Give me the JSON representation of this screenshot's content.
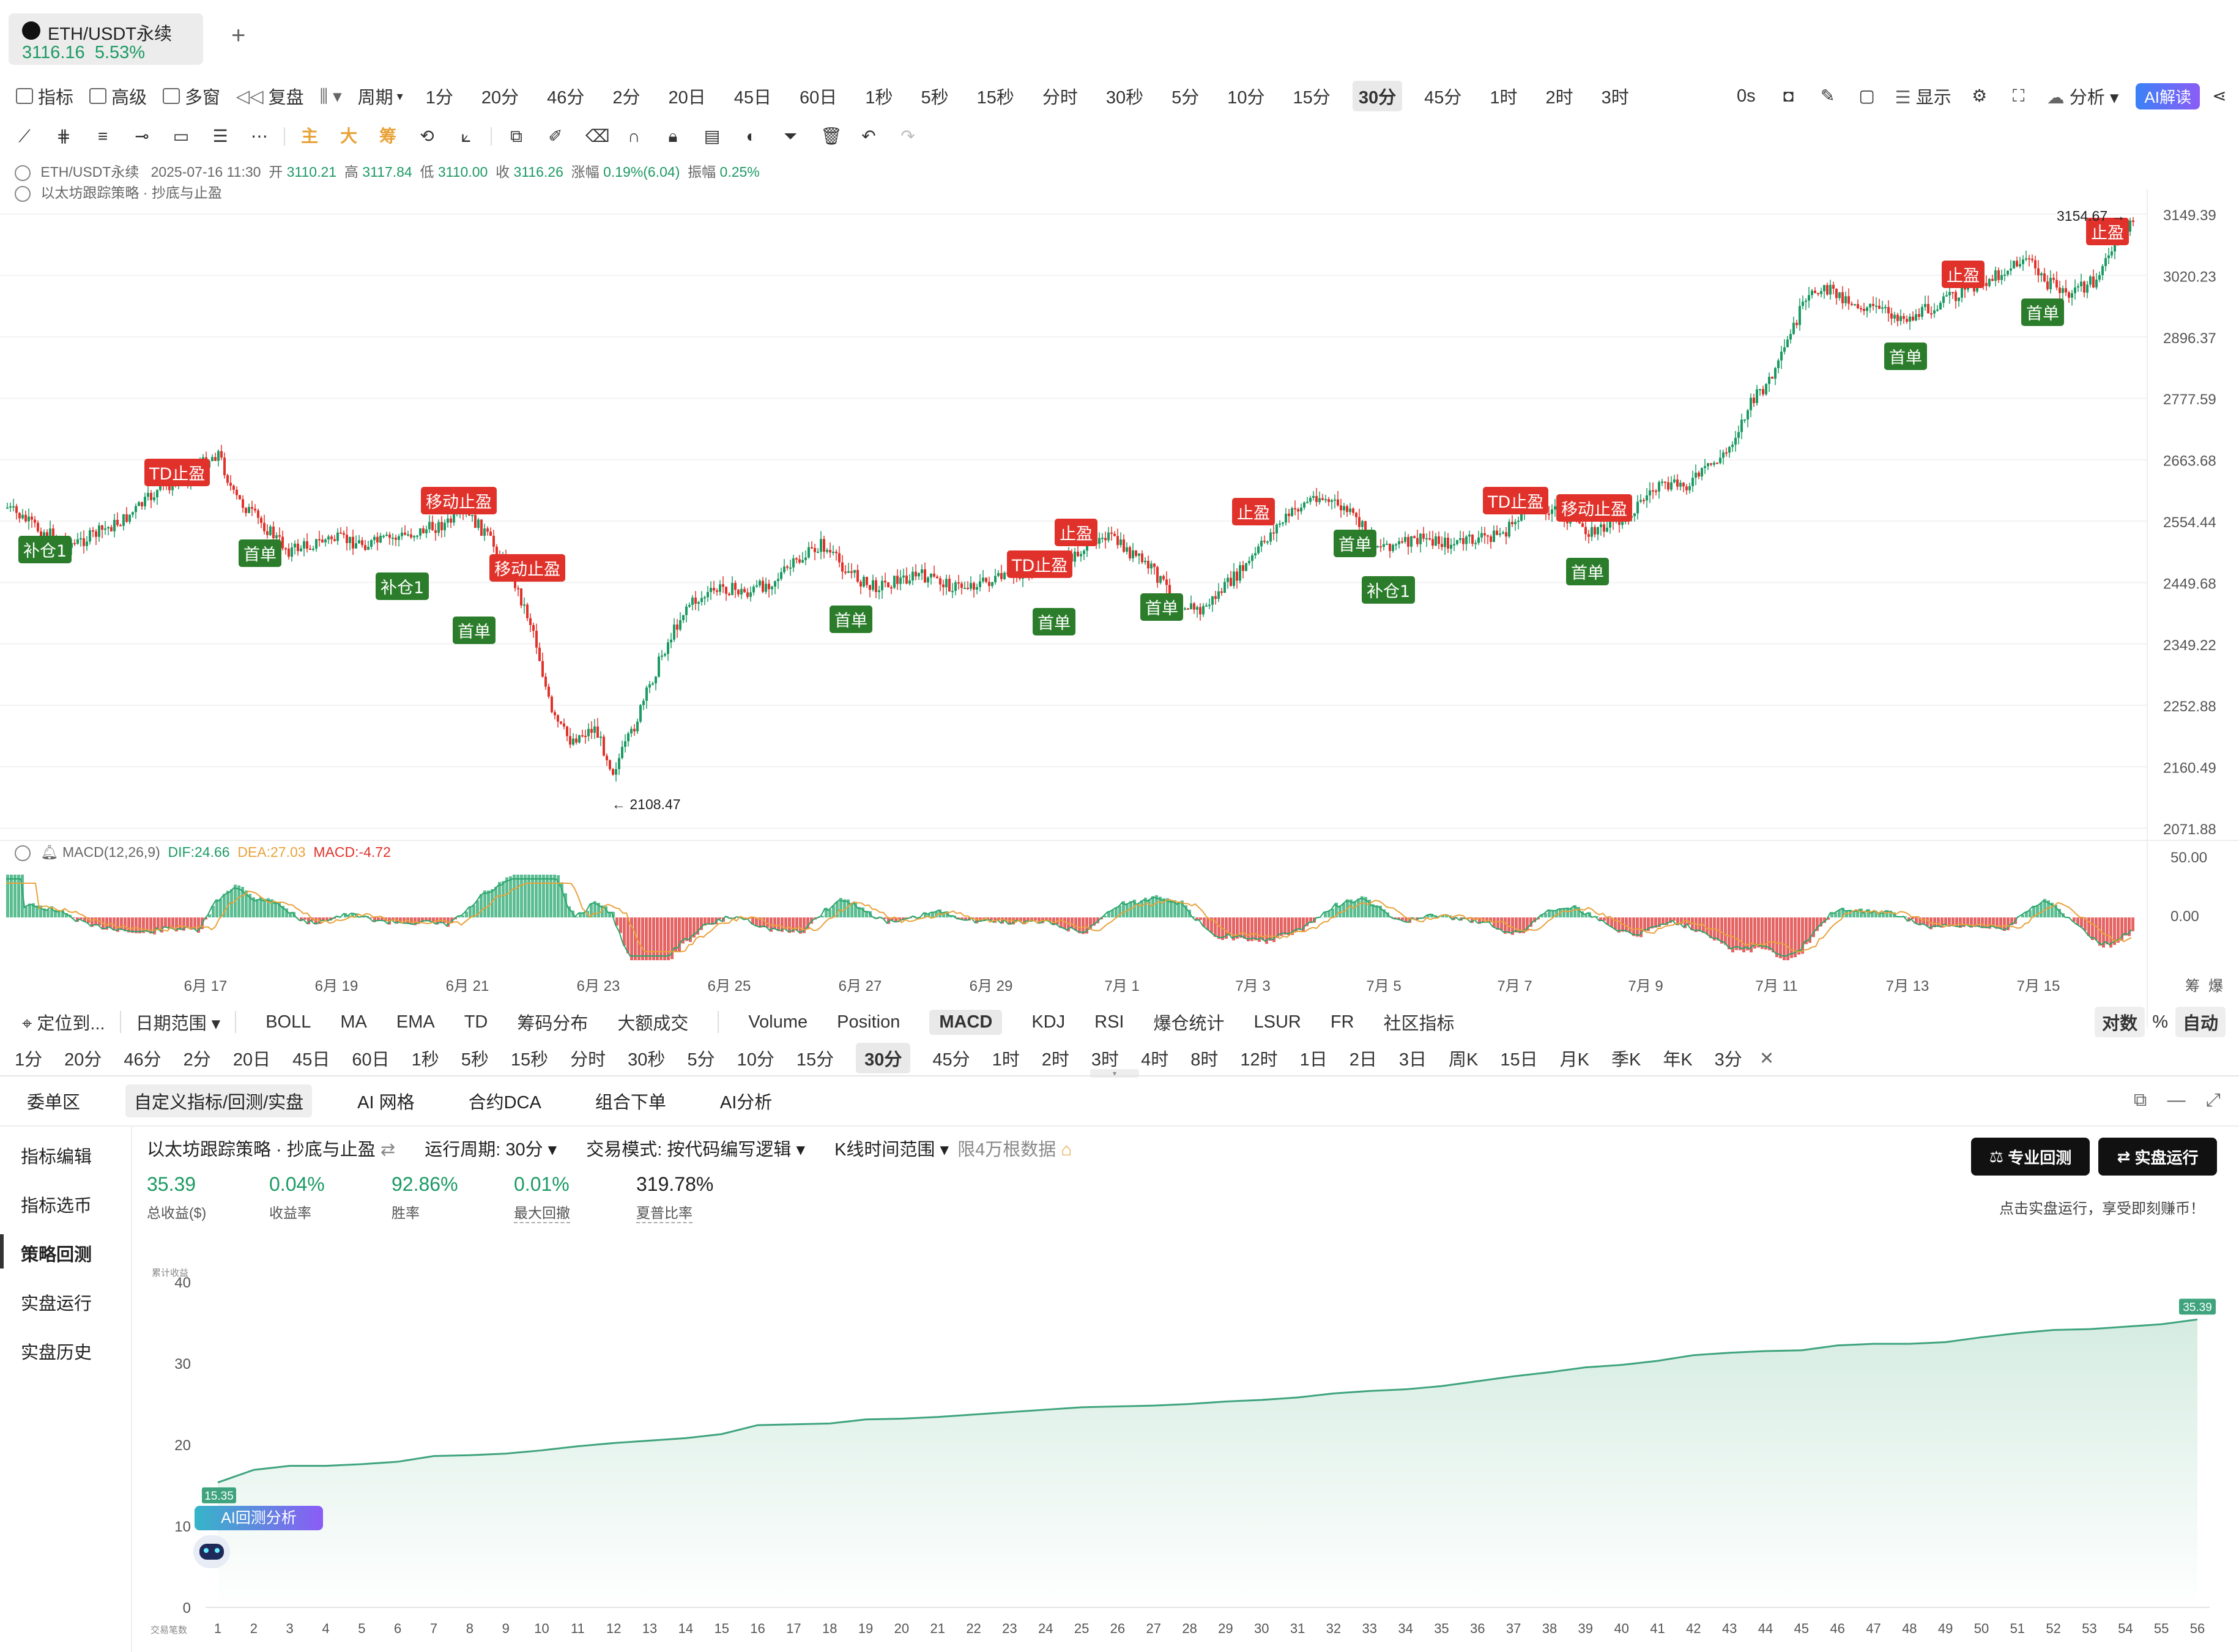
{
  "tab": {
    "pair": "ETH/USDT永续",
    "price": "3116.16",
    "change": "5.53%"
  },
  "toolbar": {
    "items": [
      "指标",
      "高级",
      "多窗",
      "复盘",
      "周期"
    ],
    "periods": [
      "1分",
      "20分",
      "46分",
      "2分",
      "20日",
      "45日",
      "60日",
      "1秒",
      "5秒",
      "15秒",
      "分时",
      "30秒",
      "5分",
      "10分",
      "15分",
      "30分",
      "45分",
      "1时",
      "2时",
      "3时"
    ],
    "active_period": "30分",
    "right": [
      "0s",
      "显示",
      "分析"
    ],
    "ai": "AI解读"
  },
  "drawbar": {
    "labels": [
      "主",
      "大",
      "筹"
    ]
  },
  "legend": {
    "symbol": "ETH/USDT永续",
    "time": "2025-07-16 11:30",
    "open_l": "开",
    "open": "3110.21",
    "high_l": "高",
    "high": "3117.84",
    "low_l": "低",
    "low": "3110.00",
    "close_l": "收",
    "close": "3116.26",
    "chg_l": "涨幅",
    "chg": "0.19%(6.04)",
    "amp_l": "振幅",
    "amp": "0.25%",
    "strategy": "以太坊跟踪策略 · 抄底与止盈"
  },
  "price_axis": [
    "3149.39",
    "3020.23",
    "2896.37",
    "2777.59",
    "2663.68",
    "2554.44",
    "2449.68",
    "2349.22",
    "2252.88",
    "2160.49",
    "2071.88"
  ],
  "annotations": {
    "high": "3154.67",
    "low": "2108.47"
  },
  "macd": {
    "label": "MACD(12,26,9)",
    "dif": "DIF:24.66",
    "dea": "DEA:27.03",
    "macd": "MACD:-4.72",
    "axis": [
      "50.00",
      "0.00"
    ]
  },
  "date_axis": [
    "6月 17",
    "6月 19",
    "6月 21",
    "6月 23",
    "6月 25",
    "6月 27",
    "6月 29",
    "7月 1",
    "7月 3",
    "7月 5",
    "7月 7",
    "7月 9",
    "7月 11",
    "7月 13",
    "7月 15"
  ],
  "date_axis_right": [
    "筹",
    "爆"
  ],
  "indicators": {
    "locate": "定位到...",
    "range": "日期范围",
    "items": [
      "BOLL",
      "MA",
      "EMA",
      "TD",
      "筹码分布",
      "大额成交",
      "Volume",
      "Position",
      "MACD",
      "KDJ",
      "RSI",
      "爆仓统计",
      "LSUR",
      "FR",
      "社区指标"
    ],
    "active": "MACD",
    "right": [
      "对数",
      "%",
      "自动"
    ]
  },
  "periods2": {
    "items": [
      "1分",
      "20分",
      "46分",
      "2分",
      "20日",
      "45日",
      "60日",
      "1秒",
      "5秒",
      "15秒",
      "分时",
      "30秒",
      "5分",
      "10分",
      "15分",
      "30分",
      "45分",
      "1时",
      "2时",
      "3时",
      "4时",
      "8时",
      "12时",
      "1日",
      "2日",
      "3日",
      "周K",
      "15日",
      "月K",
      "季K",
      "年K",
      "3分"
    ],
    "active": "30分"
  },
  "panel": {
    "tabs": [
      "委单区",
      "自定义指标/回测/实盘",
      "AI 网格",
      "合约DCA",
      "组合下单",
      "AI分析"
    ],
    "active_tab": "自定义指标/回测/实盘",
    "side": [
      "指标编辑",
      "指标选币",
      "策略回测",
      "实盘运行",
      "实盘历史"
    ],
    "side_active": "策略回测",
    "strategy": "以太坊跟踪策略 · 抄底与止盈",
    "cycle": "运行周期: 30分",
    "mode": "交易模式: 按代码编写逻辑",
    "krange": "K线时间范围",
    "limit": "限4万根数据",
    "stats": [
      {
        "value": "35.39",
        "label": "总收益($)"
      },
      {
        "value": "0.04%",
        "label": "收益率"
      },
      {
        "value": "92.86%",
        "label": "胜率"
      },
      {
        "value": "0.01%",
        "label": "最大回撤"
      },
      {
        "value": "319.78%",
        "label": "夏普比率"
      }
    ],
    "btn_backtest": "专业回测",
    "btn_live": "实盘运行",
    "hint": "点击实盘运行，享受即刻赚币！",
    "ai_tag": "AI回测分析"
  },
  "chart_data": {
    "type": "area",
    "ylabel": "累计收益",
    "xlabel": "交易笔数",
    "ylim": [
      0,
      40
    ],
    "yticks": [
      0,
      10,
      20,
      30,
      40
    ],
    "x": [
      1,
      2,
      3,
      4,
      5,
      6,
      7,
      8,
      9,
      10,
      11,
      12,
      13,
      14,
      15,
      16,
      17,
      18,
      19,
      20,
      21,
      22,
      23,
      24,
      25,
      26,
      27,
      28,
      29,
      30,
      31,
      32,
      33,
      34,
      35,
      36,
      37,
      38,
      39,
      40,
      41,
      42,
      43,
      44,
      45,
      46,
      47,
      48,
      49,
      50,
      51,
      52,
      53,
      54,
      55,
      56
    ],
    "values": [
      15.35,
      16.9,
      17.4,
      17.4,
      17.6,
      17.9,
      18.6,
      18.7,
      18.9,
      19.3,
      19.8,
      20.2,
      20.5,
      20.8,
      21.3,
      22.4,
      22.5,
      22.6,
      23.1,
      23.2,
      23.4,
      23.7,
      24.0,
      24.3,
      24.6,
      24.7,
      24.8,
      25.0,
      25.3,
      25.5,
      25.8,
      26.3,
      26.6,
      26.8,
      27.2,
      27.8,
      28.4,
      28.9,
      29.5,
      29.8,
      30.3,
      31.0,
      31.3,
      31.5,
      31.6,
      32.2,
      32.4,
      32.4,
      32.6,
      33.2,
      33.7,
      34.1,
      34.2,
      34.5,
      34.8,
      35.39
    ],
    "start_label": "15.35",
    "end_label": "35.39",
    "colors": {
      "line": "#3fa47e",
      "fill": "#d5ece2"
    }
  }
}
